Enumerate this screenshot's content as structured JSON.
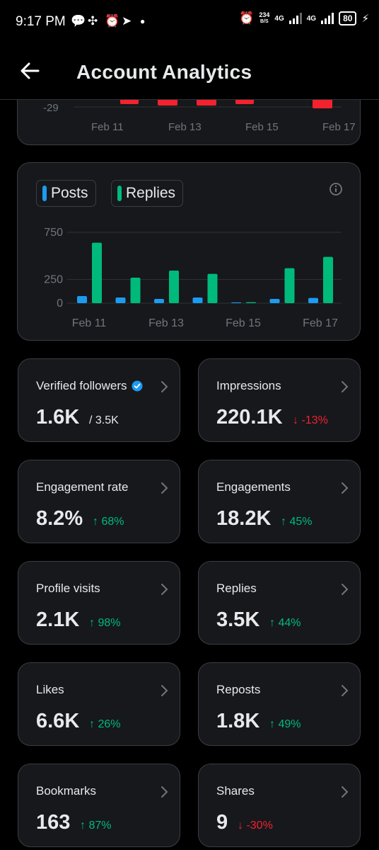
{
  "status_bar": {
    "time": "9:17 PM",
    "speed_value": "234",
    "speed_unit": "B/S",
    "net1": "4G",
    "net2": "4G",
    "battery": "80"
  },
  "header": {
    "title": "Account Analytics"
  },
  "top_chart": {
    "tick_y": "-29",
    "x_labels": [
      "Feb 11",
      "Feb 13",
      "Feb 15",
      "Feb 17"
    ]
  },
  "legend": {
    "posts": "Posts",
    "replies": "Replies"
  },
  "colors": {
    "posts": "#1d9bf0",
    "replies": "#00ba7c",
    "negative": "#f4212e",
    "card_bg": "#16181c"
  },
  "chart_data": {
    "type": "bar",
    "categories": [
      "Feb 11",
      "Feb 12",
      "Feb 13",
      "Feb 14",
      "Feb 15",
      "Feb 16",
      "Feb 17"
    ],
    "x_tick_labels": [
      "Feb 11",
      "Feb 13",
      "Feb 15",
      "Feb 17"
    ],
    "y_ticks": [
      0,
      250,
      750
    ],
    "ylim": [
      0,
      750
    ],
    "series": [
      {
        "name": "Posts",
        "values": [
          75,
          60,
          45,
          60,
          8,
          45,
          55
        ]
      },
      {
        "name": "Replies",
        "values": [
          640,
          270,
          345,
          310,
          10,
          370,
          490
        ]
      }
    ],
    "grid": true,
    "legend_position": "top-left"
  },
  "stats": [
    {
      "label": "Verified followers",
      "value": "1.6K",
      "change": "/ 3.5K",
      "trend": "neutral",
      "verified": true
    },
    {
      "label": "Impressions",
      "value": "220.1K",
      "change": "↓ -13%",
      "trend": "down"
    },
    {
      "label": "Engagement rate",
      "value": "8.2%",
      "change": "↑ 68%",
      "trend": "up"
    },
    {
      "label": "Engagements",
      "value": "18.2K",
      "change": "↑ 45%",
      "trend": "up"
    },
    {
      "label": "Profile visits",
      "value": "2.1K",
      "change": "↑ 98%",
      "trend": "up"
    },
    {
      "label": "Replies",
      "value": "3.5K",
      "change": "↑ 44%",
      "trend": "up"
    },
    {
      "label": "Likes",
      "value": "6.6K",
      "change": "↑ 26%",
      "trend": "up"
    },
    {
      "label": "Reposts",
      "value": "1.8K",
      "change": "↑ 49%",
      "trend": "up"
    },
    {
      "label": "Bookmarks",
      "value": "163",
      "change": "↑ 87%",
      "trend": "up"
    },
    {
      "label": "Shares",
      "value": "9",
      "change": "↓ -30%",
      "trend": "down"
    }
  ]
}
